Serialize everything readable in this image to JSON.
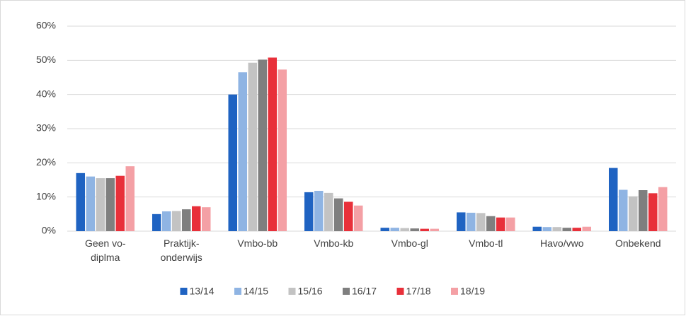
{
  "chart_data": {
    "type": "bar",
    "categories": [
      "Geen vo-\ndiplma",
      "Praktijk-\nonderwijs",
      "Vmbo-bb",
      "Vmbo-kb",
      "Vmbo-gl",
      "Vmbo-tl",
      "Havo/vwo",
      "Onbekend"
    ],
    "series": [
      {
        "name": "13/14",
        "color": "#1f63c2",
        "values": [
          17,
          5,
          40,
          11.4,
          1,
          5.5,
          1.3,
          18.5
        ]
      },
      {
        "name": "14/15",
        "color": "#8fb4e3",
        "values": [
          16,
          5.8,
          46.5,
          11.8,
          1,
          5.4,
          1.2,
          12.1
        ]
      },
      {
        "name": "15/16",
        "color": "#c3c3c3",
        "values": [
          15.5,
          5.9,
          49.3,
          11.2,
          0.9,
          5.3,
          1.2,
          10.2
        ]
      },
      {
        "name": "16/17",
        "color": "#7f7f7f",
        "values": [
          15.5,
          6.4,
          50.2,
          9.6,
          0.8,
          4.4,
          1,
          12
        ]
      },
      {
        "name": "17/18",
        "color": "#e8303a",
        "values": [
          16.2,
          7.3,
          50.8,
          8.6,
          0.7,
          4,
          1,
          11.1
        ]
      },
      {
        "name": "18/19",
        "color": "#f4a0a5",
        "values": [
          19,
          7,
          47.3,
          7.5,
          0.7,
          4,
          1.3,
          12.9
        ]
      }
    ],
    "ylim": [
      0,
      60
    ],
    "yticks": [
      {
        "value": 0,
        "label": "0%"
      },
      {
        "value": 10,
        "label": "10%"
      },
      {
        "value": 20,
        "label": "20%"
      },
      {
        "value": 30,
        "label": "30%"
      },
      {
        "value": 40,
        "label": "40%"
      },
      {
        "value": 50,
        "label": "50%"
      },
      {
        "value": 60,
        "label": "60%"
      }
    ],
    "grid": true,
    "legend": "bottom"
  }
}
